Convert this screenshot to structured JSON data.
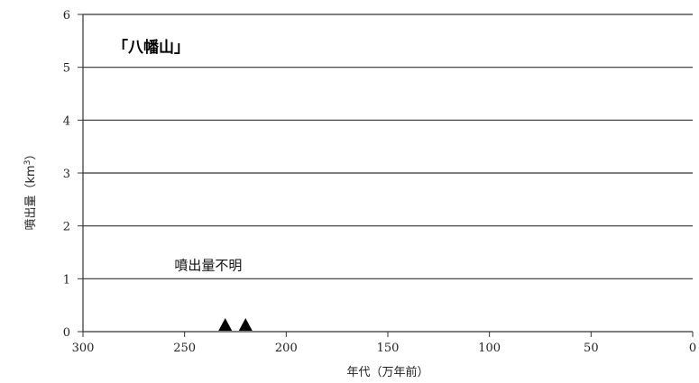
{
  "chart_data": {
    "type": "scatter",
    "title": "「八幡山」",
    "xlabel": "年代（万年前）",
    "ylabel": "噴出量（km",
    "ylabel_sup": "3",
    "ylabel_close": "）",
    "xlim": [
      300,
      0
    ],
    "ylim": [
      0,
      6
    ],
    "x_reversed": true,
    "xticks": [
      300,
      250,
      200,
      150,
      100,
      50,
      0
    ],
    "yticks": [
      0,
      1,
      2,
      3,
      4,
      5,
      6
    ],
    "grid": "horizontal",
    "marker": "triangle",
    "marker_color": "#000000",
    "points": [
      {
        "x": 230,
        "y": 0.1
      },
      {
        "x": 220,
        "y": 0.1
      }
    ],
    "annotations": [
      {
        "text": "噴出量不明",
        "x": 255,
        "y": 1.25
      }
    ]
  }
}
